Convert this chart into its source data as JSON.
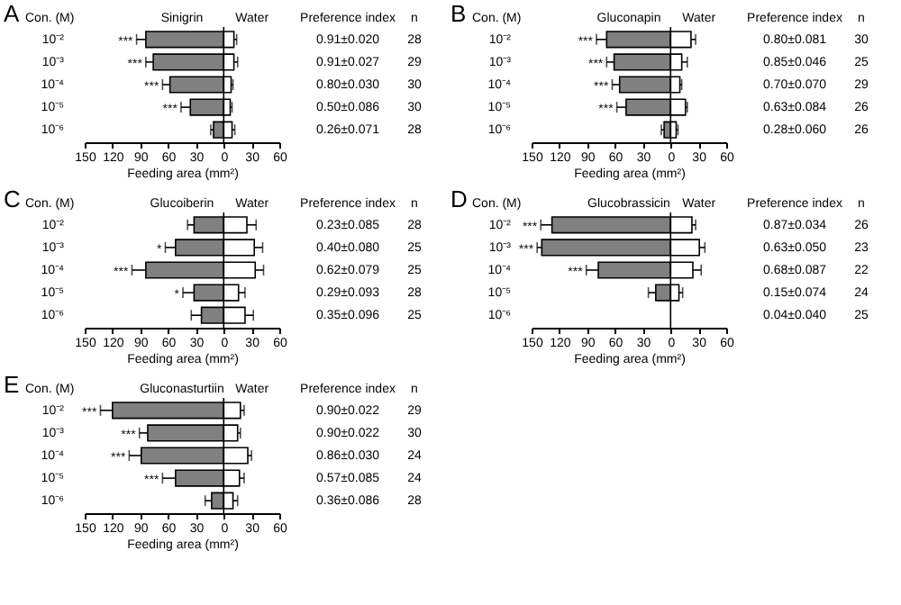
{
  "chart_data": [
    {
      "type": "bar",
      "title": "A",
      "orientation": "horizontal",
      "stacked": true,
      "ylabel": "Con. (M)",
      "xlabel": "Feeding area (mm²)",
      "categories": [
        "10⁻²",
        "10⁻³",
        "10⁻⁴",
        "10⁻⁵",
        "10⁻⁶"
      ],
      "series": [
        {
          "name": "Sinigrin",
          "color": "#808080",
          "values": [
            -84,
            -76,
            -58,
            -36,
            -11
          ],
          "errors": [
            10,
            8,
            8,
            10,
            3
          ]
        },
        {
          "name": "Water",
          "color": "#ffffff",
          "values": [
            11,
            11,
            8,
            7,
            9
          ],
          "errors": [
            3,
            4,
            2,
            2,
            3
          ]
        }
      ],
      "xlim": [
        -150,
        60
      ],
      "xticks": [
        {
          "value": -150,
          "label": "150"
        },
        {
          "value": -120,
          "label": "120"
        },
        {
          "value": -90,
          "label": "90"
        },
        {
          "value": -60,
          "label": "60"
        },
        {
          "value": -30,
          "label": "30"
        },
        0,
        30,
        60
      ],
      "ref_lines": [
        {
          "axis": "x",
          "value": 0
        }
      ],
      "grid": false,
      "legend": false,
      "annotations": [
        "Preference index",
        "n",
        "0.91±0.020",
        "28",
        "0.91±0.027",
        "29",
        "0.80±0.030",
        "30",
        "0.50±0.086",
        "30",
        "0.26±0.071",
        "28",
        {
          "text": "***",
          "x": -84,
          "y": "10⁻²"
        },
        {
          "text": "***",
          "x": -76,
          "y": "10⁻³"
        },
        {
          "text": "***",
          "x": -58,
          "y": "10⁻⁴"
        },
        {
          "text": "***",
          "x": -36,
          "y": "10⁻⁵"
        }
      ]
    },
    {
      "type": "bar",
      "title": "B",
      "orientation": "horizontal",
      "stacked": true,
      "ylabel": "Con. (M)",
      "xlabel": "Feeding area (mm²)",
      "categories": [
        "10⁻²",
        "10⁻³",
        "10⁻⁴",
        "10⁻⁵",
        "10⁻⁶"
      ],
      "series": [
        {
          "name": "Gluconapin",
          "color": "#808080",
          "values": [
            -69,
            -61,
            -55,
            -48,
            -7
          ],
          "errors": [
            11,
            8,
            8,
            10,
            3
          ]
        },
        {
          "name": "Water",
          "color": "#ffffff",
          "values": [
            22,
            12,
            10,
            16,
            6
          ],
          "errors": [
            5,
            6,
            2,
            2,
            2
          ]
        }
      ],
      "xlim": [
        -150,
        60
      ],
      "xticks": [
        {
          "value": -150,
          "label": "150"
        },
        {
          "value": -120,
          "label": "120"
        },
        {
          "value": -90,
          "label": "90"
        },
        {
          "value": -60,
          "label": "60"
        },
        {
          "value": -30,
          "label": "30"
        },
        0,
        30,
        60
      ],
      "ref_lines": [
        {
          "axis": "x",
          "value": 0
        }
      ],
      "grid": false,
      "legend": false,
      "annotations": [
        "Preference index",
        "n",
        "0.80±0.081",
        "30",
        "0.85±0.046",
        "25",
        "0.70±0.070",
        "29",
        "0.63±0.084",
        "26",
        "0.28±0.060",
        "26",
        {
          "text": "***",
          "x": -69,
          "y": "10⁻²"
        },
        {
          "text": "***",
          "x": -61,
          "y": "10⁻³"
        },
        {
          "text": "***",
          "x": -55,
          "y": "10⁻⁴"
        },
        {
          "text": "***",
          "x": -48,
          "y": "10⁻⁵"
        }
      ]
    },
    {
      "type": "bar",
      "title": "C",
      "orientation": "horizontal",
      "stacked": true,
      "ylabel": "Con. (M)",
      "xlabel": "Feeding area (mm²)",
      "categories": [
        "10⁻²",
        "10⁻³",
        "10⁻⁴",
        "10⁻⁵",
        "10⁻⁶"
      ],
      "series": [
        {
          "name": "Glucoiberin",
          "color": "#808080",
          "values": [
            -32,
            -52,
            -84,
            -32,
            -24
          ],
          "errors": [
            7,
            11,
            15,
            12,
            11
          ]
        },
        {
          "name": "Water",
          "color": "#ffffff",
          "values": [
            25,
            33,
            34,
            16,
            23
          ],
          "errors": [
            10,
            9,
            9,
            7,
            9
          ]
        }
      ],
      "xlim": [
        -150,
        60
      ],
      "xticks": [
        {
          "value": -150,
          "label": "150"
        },
        {
          "value": -120,
          "label": "120"
        },
        {
          "value": -90,
          "label": "90"
        },
        {
          "value": -60,
          "label": "60"
        },
        {
          "value": -30,
          "label": "30"
        },
        0,
        30,
        60
      ],
      "ref_lines": [
        {
          "axis": "x",
          "value": 0
        }
      ],
      "grid": false,
      "legend": false,
      "annotations": [
        "Preference index",
        "n",
        "0.23±0.085",
        "28",
        "0.40±0.080",
        "25",
        "0.62±0.079",
        "25",
        "0.29±0.093",
        "28",
        "0.35±0.096",
        "25",
        {
          "text": "*",
          "x": -52,
          "y": "10⁻³"
        },
        {
          "text": "***",
          "x": -84,
          "y": "10⁻⁴"
        },
        {
          "text": "*",
          "x": -32,
          "y": "10⁻⁵"
        }
      ]
    },
    {
      "type": "bar",
      "title": "D",
      "orientation": "horizontal",
      "stacked": true,
      "ylabel": "Con. (M)",
      "xlabel": "Feeding area (mm²)",
      "categories": [
        "10⁻²",
        "10⁻³",
        "10⁻⁴",
        "10⁻⁵",
        "10⁻⁶"
      ],
      "series": [
        {
          "name": "Glucobrassicin",
          "color": "#808080",
          "values": [
            -128,
            -139,
            -78,
            -16,
            null
          ],
          "errors": [
            12,
            5,
            13,
            8,
            null
          ]
        },
        {
          "name": "Water",
          "color": "#ffffff",
          "values": [
            23,
            31,
            24,
            9,
            null
          ],
          "errors": [
            4,
            6,
            9,
            4,
            null
          ]
        }
      ],
      "xlim": [
        -150,
        60
      ],
      "xticks": [
        {
          "value": -150,
          "label": "150"
        },
        {
          "value": -120,
          "label": "120"
        },
        {
          "value": -90,
          "label": "90"
        },
        {
          "value": -60,
          "label": "60"
        },
        {
          "value": -30,
          "label": "30"
        },
        0,
        30,
        60
      ],
      "ref_lines": [
        {
          "axis": "x",
          "value": 0
        }
      ],
      "grid": false,
      "legend": false,
      "annotations": [
        "Preference index",
        "n",
        "0.87±0.034",
        "26",
        "0.63±0.050",
        "23",
        "0.68±0.087",
        "22",
        "0.15±0.074",
        "24",
        "0.04±0.040",
        "25",
        {
          "text": "***",
          "x": -128,
          "y": "10⁻²"
        },
        {
          "text": "***",
          "x": -139,
          "y": "10⁻³"
        },
        {
          "text": "***",
          "x": -78,
          "y": "10⁻⁴"
        }
      ]
    },
    {
      "type": "bar",
      "title": "E",
      "orientation": "horizontal",
      "stacked": true,
      "ylabel": "Con. (M)",
      "xlabel": "Feeding area (mm²)",
      "categories": [
        "10⁻²",
        "10⁻³",
        "10⁻⁴",
        "10⁻⁵",
        "10⁻⁶"
      ],
      "series": [
        {
          "name": "Gluconasturtiin",
          "color": "#808080",
          "values": [
            -120,
            -82,
            -89,
            -52,
            -13
          ],
          "errors": [
            13,
            9,
            13,
            14,
            7
          ]
        },
        {
          "name": "Water",
          "color": "#ffffff",
          "values": [
            18,
            15,
            26,
            17,
            10
          ],
          "errors": [
            4,
            3,
            4,
            5,
            5
          ]
        }
      ],
      "xlim": [
        -150,
        60
      ],
      "xticks": [
        {
          "value": -150,
          "label": "150"
        },
        {
          "value": -120,
          "label": "120"
        },
        {
          "value": -90,
          "label": "90"
        },
        {
          "value": -60,
          "label": "60"
        },
        {
          "value": -30,
          "label": "30"
        },
        0,
        30,
        60
      ],
      "ref_lines": [
        {
          "axis": "x",
          "value": 0
        }
      ],
      "grid": false,
      "legend": false,
      "annotations": [
        "Preference index",
        "n",
        "0.90±0.022",
        "29",
        "0.90±0.022",
        "30",
        "0.86±0.030",
        "24",
        "0.57±0.085",
        "24",
        "0.36±0.086",
        "28",
        {
          "text": "***",
          "x": -120,
          "y": "10⁻²"
        },
        {
          "text": "***",
          "x": -82,
          "y": "10⁻³"
        },
        {
          "text": "***",
          "x": -89,
          "y": "10⁻⁴"
        },
        {
          "text": "***",
          "x": -52,
          "y": "10⁻⁵"
        }
      ]
    }
  ]
}
